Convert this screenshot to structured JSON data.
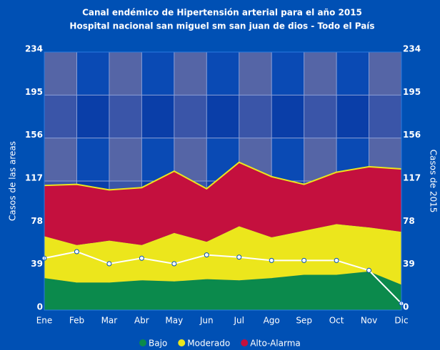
{
  "chart_data": {
    "type": "stacked-area",
    "title": "Canal endémico de Hipertensión arterial para el año 2015",
    "subtitle": "Hospital nacional san miguel  sm san juan de dios - Todo el País",
    "ylabel": "Casos de las areas",
    "y2label": "Casos de 2015",
    "categories": [
      "Ene",
      "Feb",
      "Mar",
      "Abr",
      "May",
      "Jun",
      "Jul",
      "Ago",
      "Sep",
      "Oct",
      "Nov",
      "Dic"
    ],
    "series": [
      {
        "name": "Bajo",
        "color": "#0b8a4c",
        "values": [
          29,
          25,
          25,
          27,
          26,
          28,
          27,
          29,
          32,
          32,
          35,
          23
        ]
      },
      {
        "name": "Moderado",
        "color": "#ece61c",
        "values": [
          38,
          34,
          38,
          32,
          44,
          34,
          49,
          37,
          40,
          46,
          40,
          48
        ]
      },
      {
        "name": "Alto-Alarma",
        "color": "#c4103e",
        "values": [
          46,
          55,
          46,
          52,
          56,
          48,
          58,
          55,
          42,
          47,
          55,
          57
        ]
      },
      {
        "type": "line",
        "axis": "y2",
        "color": "#ffffff",
        "values": [
          47,
          53,
          42,
          47,
          42,
          50,
          48,
          45,
          45,
          45,
          36,
          6
        ]
      }
    ],
    "ylim": [
      0,
      234
    ],
    "yticks": [
      0,
      39,
      78,
      117,
      156,
      195,
      234
    ],
    "y2lim": [
      0,
      234
    ],
    "y2ticks": [
      0,
      39,
      78,
      117,
      156,
      195,
      234
    ],
    "grid": true,
    "legend": "bottom"
  }
}
